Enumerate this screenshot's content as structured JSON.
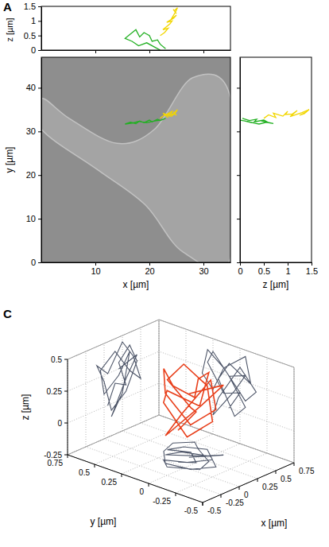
{
  "chart_data": [
    {
      "type": "line",
      "panel": "A",
      "xlabel": "x [µm]",
      "ylabel": "y [µm]",
      "zlabel": "z [µm]",
      "xlim": [
        0,
        35
      ],
      "xticks": [
        10,
        20,
        30
      ],
      "ylim": [
        0,
        47
      ],
      "yticks": [
        0,
        10,
        20,
        30,
        40
      ],
      "zlim": [
        0,
        1.5
      ],
      "zticks": [
        0,
        0.5,
        1,
        1.5
      ],
      "series": [
        {
          "color": "#22b022",
          "x": [
            23.0,
            22.0,
            21.5,
            20.5,
            20.0,
            19.0,
            18.2,
            17.5,
            16.5,
            15.5,
            16.8,
            18.0,
            19.5,
            21.0,
            22.0
          ],
          "y": [
            33.0,
            32.5,
            32.8,
            32.2,
            32.6,
            32.0,
            32.4,
            31.8,
            32.1,
            31.7,
            31.9,
            32.3,
            32.0,
            32.4,
            32.6
          ],
          "z": [
            0.05,
            0.2,
            0.35,
            0.3,
            0.5,
            0.6,
            0.45,
            0.7,
            0.55,
            0.4,
            0.3,
            0.15,
            0.25,
            0.1,
            0.0
          ]
        },
        {
          "color": "#f2d600",
          "x": [
            22.0,
            22.8,
            23.5,
            22.5,
            23.8,
            24.2,
            23.2,
            24.5,
            25.0,
            24.0,
            24.8,
            25.2,
            24.6,
            25.0,
            24.4
          ],
          "y": [
            33.0,
            33.8,
            33.2,
            34.2,
            33.5,
            34.6,
            33.9,
            34.0,
            34.8,
            33.4,
            34.3,
            35.0,
            34.1,
            33.7,
            34.5
          ],
          "z": [
            0.5,
            0.6,
            0.75,
            0.7,
            0.9,
            1.0,
            0.95,
            1.1,
            1.2,
            1.05,
            1.3,
            1.45,
            1.35,
            1.25,
            1.4
          ]
        }
      ]
    },
    {
      "type": "line3d",
      "panel": "C",
      "xlabel": "x [µm]",
      "ylabel": "y [µm]",
      "zlabel": "z [µm]",
      "xlim": [
        -0.5,
        0.75
      ],
      "xticks": [
        -0.5,
        -0.25,
        0,
        0.25,
        0.5,
        0.75
      ],
      "ylim": [
        -0.5,
        0.75
      ],
      "yticks": [
        -0.5,
        -0.25,
        0,
        0.25,
        0.5,
        0.75
      ],
      "zlim": [
        -0.25,
        0.5
      ],
      "zticks": [
        -0.25,
        0,
        0.25,
        0.5
      ],
      "grid": true,
      "series": [
        {
          "color": "#e8401c",
          "x": [
            0.05,
            0.15,
            0.3,
            0.2,
            0.35,
            0.45,
            0.3,
            0.1,
            0.0,
            -0.1,
            0.05,
            0.25,
            0.4,
            0.5,
            0.35,
            0.15,
            -0.05,
            0.0,
            0.2,
            0.35,
            0.25,
            0.1,
            0.3,
            0.45,
            0.2
          ],
          "y": [
            0.1,
            0.0,
            0.15,
            0.3,
            0.25,
            0.1,
            -0.05,
            0.05,
            0.2,
            0.1,
            -0.1,
            -0.05,
            0.15,
            0.25,
            0.35,
            0.3,
            0.15,
            -0.05,
            -0.15,
            0.0,
            0.2,
            0.25,
            0.05,
            -0.05,
            0.1
          ],
          "z": [
            0.0,
            0.15,
            0.1,
            0.3,
            0.4,
            0.25,
            0.05,
            -0.05,
            0.2,
            0.35,
            0.25,
            0.45,
            0.3,
            0.1,
            0.2,
            0.4,
            0.3,
            0.1,
            0.2,
            0.35,
            0.05,
            -0.1,
            0.15,
            0.3,
            0.25
          ]
        }
      ]
    }
  ]
}
